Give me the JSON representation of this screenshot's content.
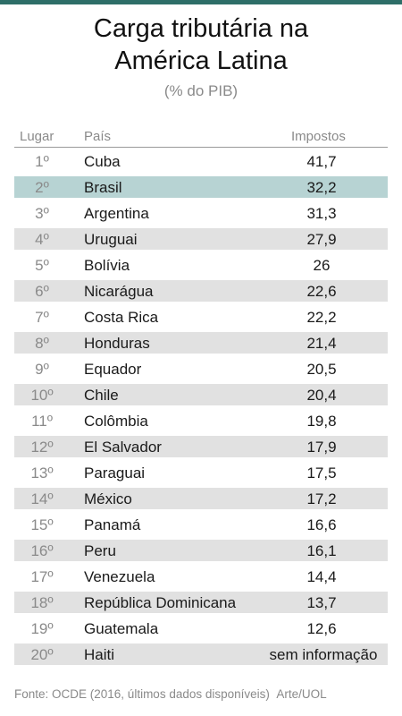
{
  "header": {
    "title_line1": "Carga tributária na",
    "title_line2": "América Latina",
    "subtitle": "(% do PIB)"
  },
  "columns": {
    "rank": "Lugar",
    "country": "País",
    "tax": "Impostos"
  },
  "colors": {
    "accent_bar": "#2e6e68",
    "highlight_row": "#b7d3d3",
    "shaded_row": "#e1e1e1"
  },
  "chart_data": {
    "type": "table",
    "title": "Carga tributária na América Latina",
    "subtitle": "(% do PIB)",
    "columns": [
      "Lugar",
      "País",
      "Impostos"
    ],
    "highlight": "Brasil",
    "rows": [
      {
        "rank": "1º",
        "country": "Cuba",
        "tax": "41,7"
      },
      {
        "rank": "2º",
        "country": "Brasil",
        "tax": "32,2"
      },
      {
        "rank": "3º",
        "country": "Argentina",
        "tax": "31,3"
      },
      {
        "rank": "4º",
        "country": "Uruguai",
        "tax": "27,9"
      },
      {
        "rank": "5º",
        "country": "Bolívia",
        "tax": "26"
      },
      {
        "rank": "6º",
        "country": "Nicarágua",
        "tax": "22,6"
      },
      {
        "rank": "7º",
        "country": "Costa Rica",
        "tax": "22,2"
      },
      {
        "rank": "8º",
        "country": "Honduras",
        "tax": "21,4"
      },
      {
        "rank": "9º",
        "country": "Equador",
        "tax": "20,5"
      },
      {
        "rank": "10º",
        "country": "Chile",
        "tax": "20,4"
      },
      {
        "rank": "11º",
        "country": "Colômbia",
        "tax": "19,8"
      },
      {
        "rank": "12º",
        "country": "El Salvador",
        "tax": "17,9"
      },
      {
        "rank": "13º",
        "country": "Paraguai",
        "tax": "17,5"
      },
      {
        "rank": "14º",
        "country": "México",
        "tax": "17,2"
      },
      {
        "rank": "15º",
        "country": "Panamá",
        "tax": "16,6"
      },
      {
        "rank": "16º",
        "country": "Peru",
        "tax": "16,1"
      },
      {
        "rank": "17º",
        "country": "Venezuela",
        "tax": "14,4"
      },
      {
        "rank": "18º",
        "country": "República Dominicana",
        "tax": "13,7"
      },
      {
        "rank": "19º",
        "country": "Guatemala",
        "tax": "12,6"
      },
      {
        "rank": "20º",
        "country": "Haiti",
        "tax": "sem informação"
      }
    ]
  },
  "footer": {
    "source": "Fonte: OCDE (2016, últimos dados disponíveis)",
    "credit": "Arte/UOL"
  }
}
